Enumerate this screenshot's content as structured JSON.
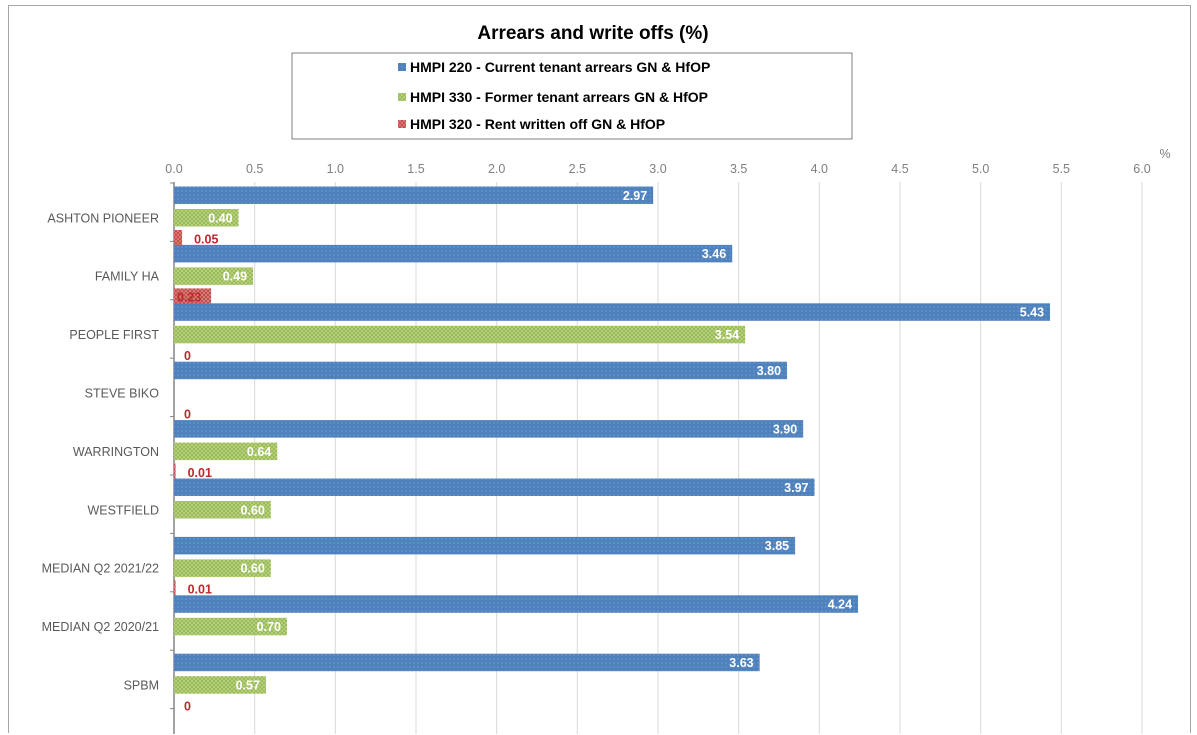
{
  "chart_data": {
    "type": "bar",
    "orientation": "horizontal",
    "title": "Arrears and write offs (%)",
    "unit_label": "%",
    "xlim": [
      0,
      6
    ],
    "x_ticks": [
      "0.0",
      "0.5",
      "1.0",
      "1.5",
      "2.0",
      "2.5",
      "3.0",
      "3.5",
      "4.0",
      "4.5",
      "5.0",
      "5.5",
      "6.0"
    ],
    "x_axis_position": "top",
    "grid": true,
    "legend_position": "top-center",
    "categories": [
      "ASHTON PIONEER",
      "FAMILY HA",
      "PEOPLE FIRST",
      "STEVE BIKO",
      "WARRINGTON",
      "WESTFIELD",
      "MEDIAN Q2 2021/22",
      "MEDIAN Q2 2020/21",
      "SPBM"
    ],
    "series": [
      {
        "name": "HMPI 220 - Current tenant arrears GN & HfOP",
        "color": "#4f81bd",
        "values": [
          2.97,
          3.46,
          5.43,
          3.8,
          3.9,
          3.97,
          3.85,
          4.24,
          3.63
        ],
        "labels": [
          "2.97",
          "3.46",
          "5.43",
          "3.80",
          "3.90",
          "3.97",
          "3.85",
          "4.24",
          "3.63"
        ]
      },
      {
        "name": "HMPI 330 - Former tenant arrears GN & HfOP",
        "color": "#9bbb59",
        "values": [
          0.4,
          0.49,
          3.54,
          null,
          0.64,
          0.6,
          0.6,
          0.7,
          0.57
        ],
        "labels": [
          "0.40",
          "0.49",
          "3.54",
          "",
          "0.64",
          "0.60",
          "0.60",
          "0.70",
          "0.57"
        ]
      },
      {
        "name": "HMPI 320 - Rent written off GN & HfOP",
        "color": "#c0504d",
        "values": [
          0.05,
          0.23,
          0,
          0,
          0.01,
          null,
          0.01,
          null,
          0
        ],
        "labels": [
          "0.05",
          "0.23",
          "0",
          "0",
          "0.01",
          "",
          "0.01",
          "",
          "0"
        ]
      }
    ]
  }
}
